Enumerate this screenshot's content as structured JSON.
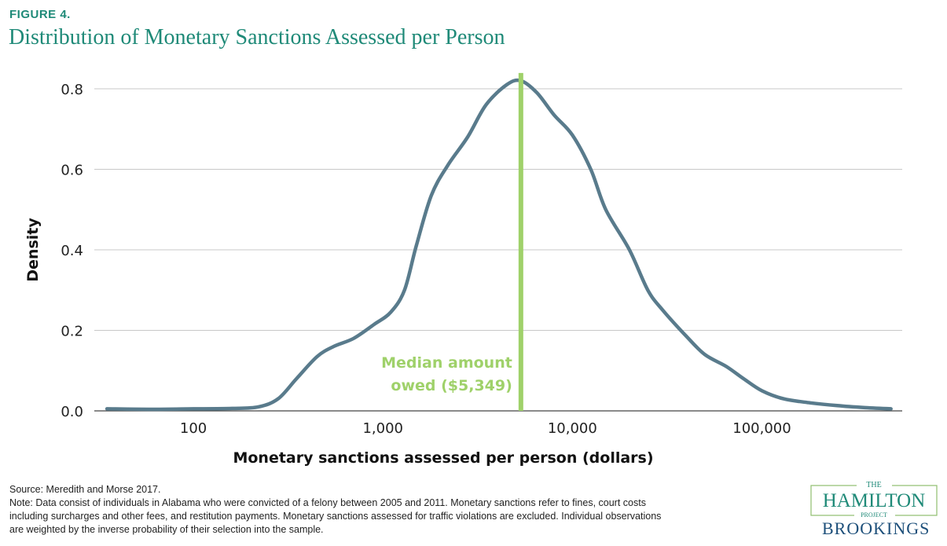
{
  "figure": {
    "label": "FIGURE 4.",
    "title": "Distribution of Monetary Sanctions Assessed per Person"
  },
  "chart_data": {
    "type": "line",
    "xlabel": "Monetary sanctions assessed per person (dollars)",
    "ylabel": "Density",
    "x_scale": "log10",
    "xlim": [
      30,
      550000
    ],
    "ylim": [
      0,
      0.8
    ],
    "x_ticks": [
      100,
      1000,
      10000,
      100000
    ],
    "x_tick_labels": [
      "100",
      "1,000",
      "10,000",
      "100,000"
    ],
    "y_ticks": [
      0.0,
      0.2,
      0.4,
      0.6,
      0.8
    ],
    "y_tick_labels": [
      "0.0",
      "0.2",
      "0.4",
      "0.6",
      "0.8"
    ],
    "grid": "horizontal",
    "series": [
      {
        "color": "#597b8c",
        "x": [
          35,
          60,
          100,
          160,
          220,
          280,
          350,
          450,
          550,
          700,
          900,
          1100,
          1300,
          1500,
          1800,
          2200,
          2800,
          3500,
          4500,
          5349,
          6500,
          8000,
          10000,
          12500,
          15000,
          20000,
          25000,
          30000,
          40000,
          50000,
          65000,
          80000,
          100000,
          130000,
          180000,
          250000,
          350000,
          480000
        ],
        "y": [
          0.005,
          0.004,
          0.005,
          0.006,
          0.01,
          0.03,
          0.08,
          0.135,
          0.16,
          0.18,
          0.215,
          0.245,
          0.3,
          0.41,
          0.535,
          0.61,
          0.68,
          0.76,
          0.81,
          0.82,
          0.79,
          0.735,
          0.685,
          0.6,
          0.5,
          0.4,
          0.3,
          0.25,
          0.185,
          0.14,
          0.11,
          0.08,
          0.05,
          0.03,
          0.02,
          0.013,
          0.008,
          0.005
        ]
      }
    ],
    "median_line": {
      "x": 5349,
      "color": "#9fd16a"
    },
    "annotation": {
      "line1": "Median amount",
      "line2": "owed ($5,349)"
    }
  },
  "footer": {
    "source": "Source: Meredith and Morse 2017.",
    "note": "Note: Data consist of individuals in Alabama who were convicted of a felony between 2005 and 2011. Monetary sanctions refer to fines, court costs including surcharges and other fees, and restitution payments. Monetary sanctions assessed for traffic violations are excluded. Individual observations are weighted by the inverse probability of their selection into the sample."
  },
  "logos": {
    "hamilton_the": "THE",
    "hamilton_name": "HAMILTON",
    "hamilton_project": "PROJECT",
    "brookings": "BROOKINGS"
  }
}
